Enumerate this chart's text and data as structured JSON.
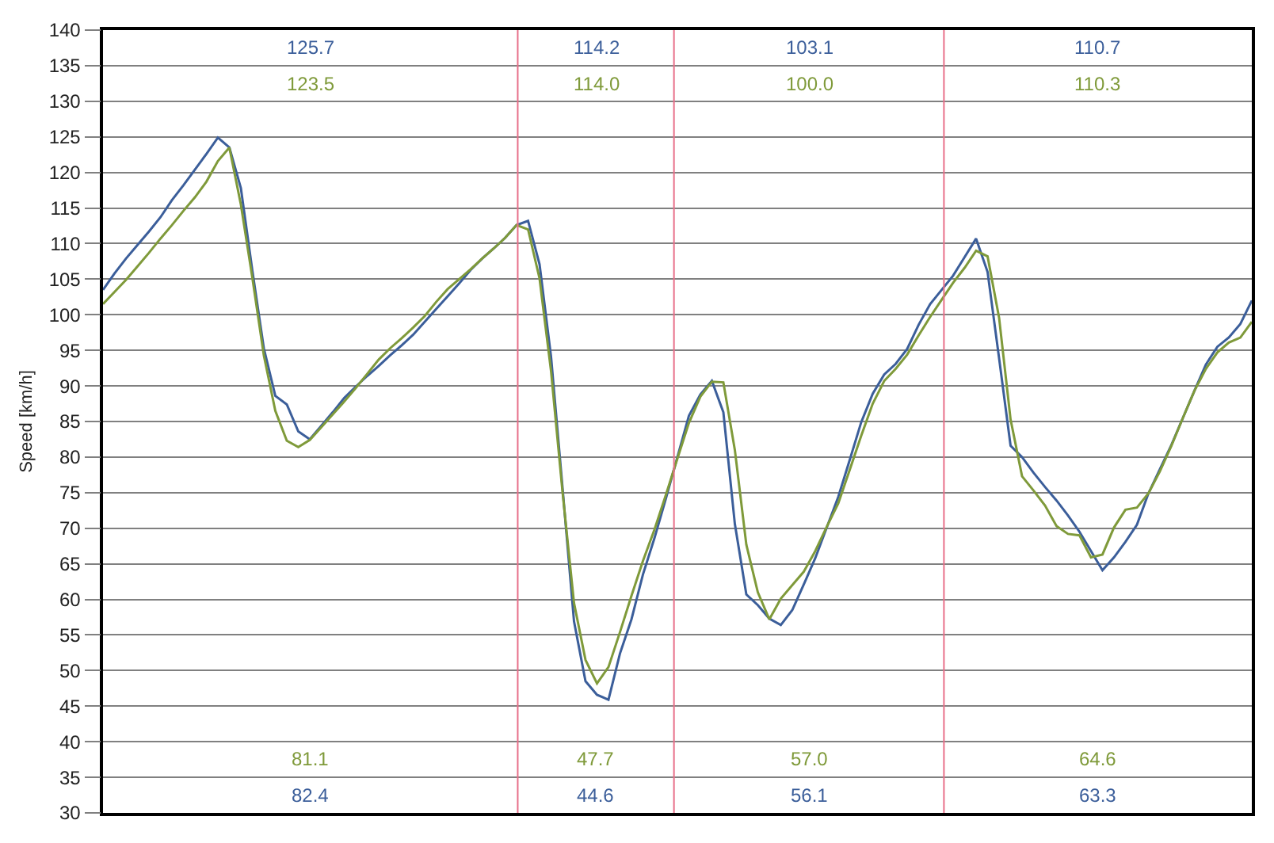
{
  "chart_data": {
    "type": "line",
    "ylabel": "Speed [km/h]",
    "categories": [
      null,
      null,
      null,
      null,
      null,
      null,
      null,
      null,
      null,
      null,
      null,
      null,
      null,
      null,
      null,
      null,
      null,
      null,
      null,
      null,
      null,
      null,
      null,
      null,
      null,
      null,
      null,
      null,
      null,
      null,
      null,
      null,
      null,
      null,
      null,
      null,
      null,
      null,
      null,
      null,
      null,
      null,
      null,
      null,
      null,
      null,
      null,
      null,
      null,
      null,
      null,
      null,
      null,
      null,
      null,
      null,
      null,
      null,
      null,
      null,
      null,
      null,
      null,
      null,
      null,
      null,
      null,
      null,
      null,
      null,
      null,
      null,
      null,
      null,
      null,
      null,
      null,
      null,
      null,
      null,
      null,
      null,
      null,
      null,
      null,
      null,
      null,
      null,
      null,
      null,
      null,
      null,
      null,
      null,
      null,
      null,
      null,
      null,
      null,
      null,
      null
    ],
    "series": [
      {
        "color": "#3b5e9a",
        "values": [
          103.5,
          105.8,
          107.9,
          109.8,
          111.7,
          113.7,
          116.1,
          118.2,
          120.4,
          122.6,
          124.9,
          123.5,
          117.8,
          106.2,
          95.3,
          88.6,
          87.4,
          83.6,
          82.5,
          84.4,
          86.3,
          88.3,
          89.9,
          91.4,
          92.8,
          94.3,
          95.7,
          97.2,
          99.0,
          100.8,
          102.6,
          104.4,
          106.3,
          107.9,
          109.3,
          110.8,
          112.6,
          113.2,
          107.1,
          94.1,
          75.7,
          56.9,
          48.5,
          46.6,
          45.9,
          52.4,
          57.2,
          63.5,
          68.6,
          74.2,
          80.0,
          85.8,
          88.8,
          90.7,
          86.3,
          70.6,
          60.7,
          59.2,
          57.3,
          56.4,
          58.5,
          62.1,
          65.8,
          70.1,
          74.4,
          79.6,
          84.9,
          88.9,
          91.6,
          93.1,
          95.2,
          98.6,
          101.5,
          103.5,
          105.5,
          108.1,
          110.7,
          106.0,
          93.9,
          81.6,
          80.0,
          77.8,
          75.8,
          73.9,
          71.8,
          69.5,
          66.8,
          64.1,
          65.9,
          68.1,
          70.5,
          74.9,
          78.3,
          81.7,
          85.5,
          89.3,
          93.0,
          95.5,
          96.8,
          98.7,
          102.0
        ]
      },
      {
        "color": "#7f9a3a",
        "values": [
          101.5,
          103.2,
          104.9,
          106.8,
          108.7,
          110.7,
          112.6,
          114.6,
          116.5,
          118.7,
          121.6,
          123.5,
          115.5,
          105.2,
          94.3,
          86.5,
          82.3,
          81.4,
          82.4,
          84.2,
          86.0,
          87.8,
          89.7,
          91.7,
          93.7,
          95.3,
          96.7,
          98.2,
          99.8,
          101.8,
          103.6,
          105.0,
          106.4,
          107.9,
          109.3,
          110.8,
          112.6,
          112.0,
          105.1,
          92.1,
          75.1,
          59.5,
          51.5,
          48.2,
          50.5,
          55.4,
          60.5,
          65.4,
          69.8,
          74.7,
          79.8,
          84.8,
          88.5,
          90.6,
          90.5,
          81.0,
          67.7,
          61.0,
          57.2,
          60.1,
          62.0,
          63.9,
          66.8,
          70.2,
          73.5,
          78.2,
          83.0,
          87.5,
          90.7,
          92.4,
          94.4,
          97.1,
          99.7,
          102.1,
          104.5,
          106.6,
          109.0,
          108.2,
          99.6,
          85.3,
          77.3,
          75.3,
          73.2,
          70.3,
          69.2,
          69.0,
          65.9,
          66.3,
          70.1,
          72.6,
          72.9,
          74.9,
          78.0,
          81.6,
          85.5,
          89.3,
          92.4,
          94.7,
          96.1,
          96.8,
          99.0
        ]
      }
    ],
    "ylim": [
      30,
      140
    ],
    "yticks": [
      30,
      35,
      40,
      45,
      50,
      55,
      60,
      65,
      70,
      75,
      80,
      85,
      90,
      95,
      100,
      105,
      110,
      115,
      120,
      125,
      130,
      135,
      140
    ],
    "grid": "y",
    "tick_labels": "y",
    "annotations": [
      "125.7",
      "123.5",
      "81.1",
      "82.4",
      "114.2",
      "114.0",
      "47.7",
      "44.6",
      "103.1",
      "100.0",
      "57.0",
      "56.1",
      "110.7",
      "110.3",
      "64.6",
      "63.3"
    ]
  }
}
